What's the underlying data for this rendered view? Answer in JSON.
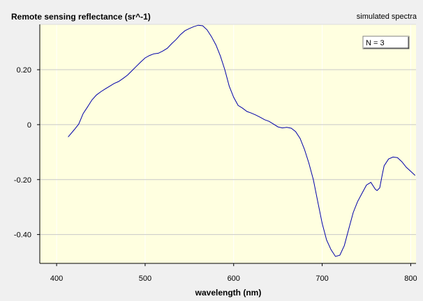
{
  "chart_data": {
    "type": "line",
    "title": "Remote sensing reflectance (sr^-1)",
    "subtitle": "simulated spectra",
    "xlabel": "wavelength (nm)",
    "ylabel": "",
    "xlim": [
      381,
      806
    ],
    "ylim": [
      -0.505,
      0.365
    ],
    "x_ticks": [
      {
        "value": 400,
        "label": "400"
      },
      {
        "value": 500,
        "label": "500"
      },
      {
        "value": 600,
        "label": "600"
      },
      {
        "value": 700,
        "label": "700"
      },
      {
        "value": 800,
        "label": "800"
      }
    ],
    "y_ticks": [
      {
        "value": 0.2,
        "label": "0.20"
      },
      {
        "value": 0,
        "label": "0"
      },
      {
        "value": -0.2,
        "label": "-0.20"
      },
      {
        "value": -0.4,
        "label": "-0.40"
      }
    ],
    "grid": true,
    "legend": {
      "text": "N = 3",
      "position": "top-right"
    },
    "colors": {
      "plot_background": "#ffffe0",
      "page_background": "#f0f0f0",
      "line": "#0000aa",
      "grid": "#c8c8c8"
    },
    "series": [
      {
        "x": [
          413,
          420,
          425,
          430,
          435,
          440,
          445,
          450,
          455,
          460,
          465,
          470,
          475,
          480,
          485,
          490,
          495,
          500,
          505,
          510,
          515,
          520,
          525,
          530,
          535,
          540,
          545,
          550,
          555,
          560,
          565,
          570,
          575,
          580,
          585,
          590,
          595,
          600,
          605,
          610,
          615,
          620,
          625,
          630,
          635,
          640,
          645,
          650,
          655,
          660,
          665,
          670,
          675,
          680,
          685,
          690,
          695,
          700,
          705,
          710,
          715,
          720,
          725,
          730,
          735,
          740,
          745,
          750,
          755,
          760,
          762,
          765,
          768,
          770,
          775,
          780,
          785,
          790,
          795,
          800,
          805
        ],
        "y": [
          -0.045,
          -0.018,
          0.002,
          0.04,
          0.065,
          0.09,
          0.108,
          0.12,
          0.13,
          0.14,
          0.15,
          0.157,
          0.168,
          0.18,
          0.196,
          0.212,
          0.228,
          0.243,
          0.252,
          0.258,
          0.26,
          0.268,
          0.278,
          0.295,
          0.31,
          0.328,
          0.342,
          0.35,
          0.357,
          0.362,
          0.36,
          0.345,
          0.32,
          0.29,
          0.25,
          0.2,
          0.14,
          0.1,
          0.07,
          0.06,
          0.048,
          0.042,
          0.035,
          0.027,
          0.018,
          0.012,
          0.002,
          -0.008,
          -0.012,
          -0.01,
          -0.013,
          -0.025,
          -0.05,
          -0.09,
          -0.14,
          -0.2,
          -0.28,
          -0.36,
          -0.42,
          -0.455,
          -0.48,
          -0.475,
          -0.44,
          -0.38,
          -0.32,
          -0.28,
          -0.25,
          -0.22,
          -0.21,
          -0.235,
          -0.24,
          -0.23,
          -0.18,
          -0.15,
          -0.125,
          -0.118,
          -0.12,
          -0.135,
          -0.155,
          -0.17,
          -0.185
        ]
      }
    ]
  }
}
